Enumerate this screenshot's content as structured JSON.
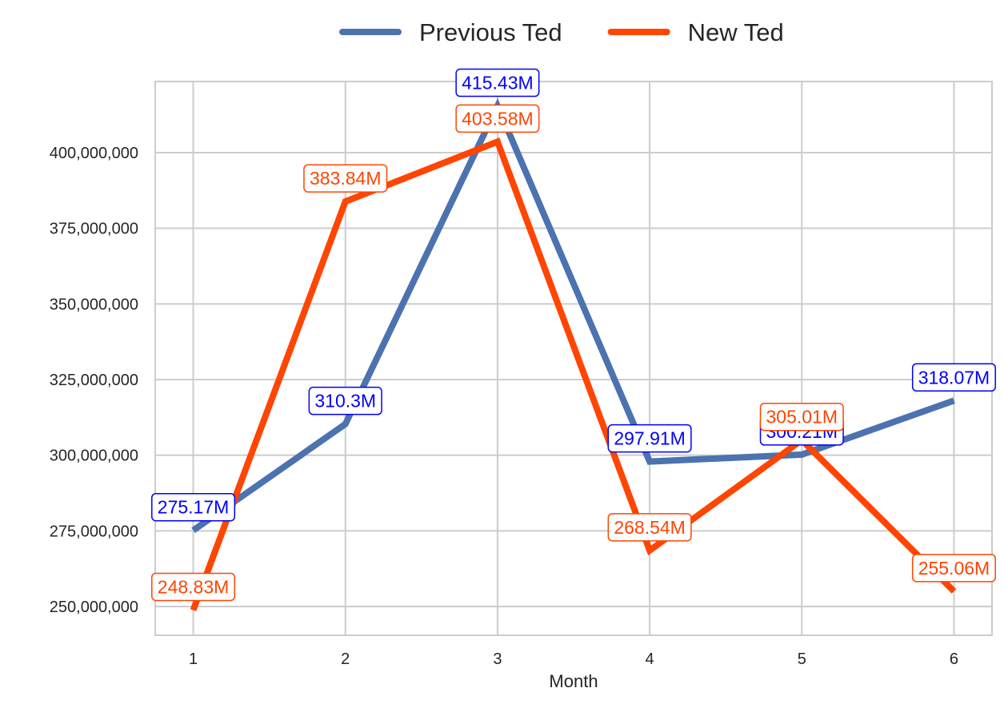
{
  "chart_data": {
    "type": "line",
    "title": "",
    "xlabel": "Month",
    "ylabel": "",
    "x": [
      1,
      2,
      3,
      4,
      5,
      6
    ],
    "xlim": [
      0.75,
      6.25
    ],
    "ylim": [
      240500000,
      423500000
    ],
    "yticks": [
      250000000,
      275000000,
      300000000,
      325000000,
      350000000,
      375000000,
      400000000
    ],
    "ytick_labels": [
      "250,000,000",
      "275,000,000",
      "300,000,000",
      "325,000,000",
      "350,000,000",
      "375,000,000",
      "400,000,000"
    ],
    "xtick_labels": [
      "1",
      "2",
      "3",
      "4",
      "5",
      "6"
    ],
    "grid": true,
    "legend_position": "top-center",
    "series": [
      {
        "name": "Previous Ted",
        "color": "#4C72B0",
        "label_color": "#0000FF",
        "values": [
          275170000,
          310300000,
          415430000,
          297910000,
          300210000,
          318070000
        ],
        "labels": [
          "275.17M",
          "310.3M",
          "415.43M",
          "297.91M",
          "300.21M",
          "318.07M"
        ]
      },
      {
        "name": "New Ted",
        "color": "#FF4500",
        "label_color": "#FF4500",
        "values": [
          248830000,
          383840000,
          403580000,
          268540000,
          305010000,
          255060000
        ],
        "labels": [
          "248.83M",
          "383.84M",
          "403.58M",
          "268.54M",
          "305.01M",
          "255.06M"
        ]
      }
    ]
  }
}
